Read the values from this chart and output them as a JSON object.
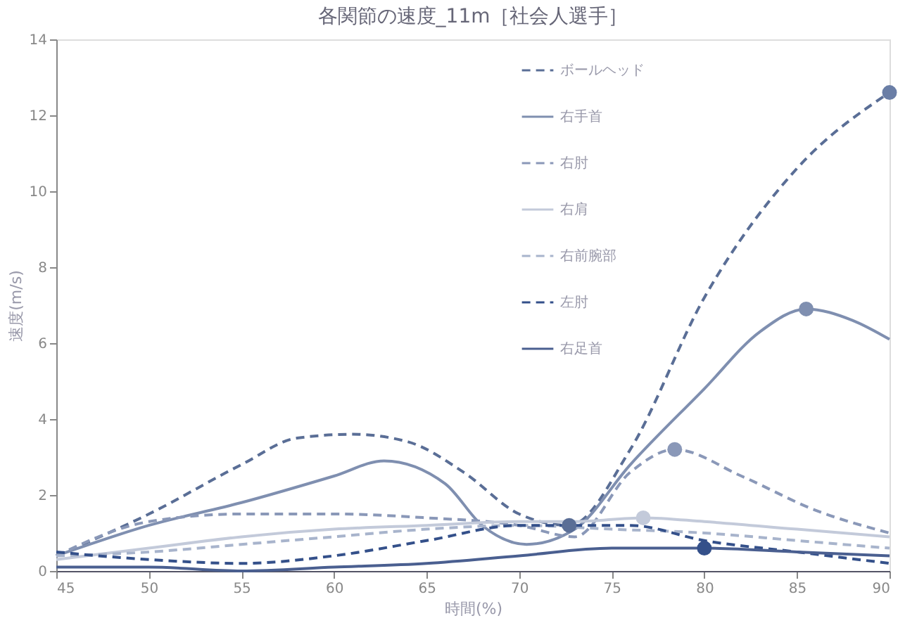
{
  "chart_data": {
    "type": "line",
    "title": "各関節の速度_11m［社会人選手］",
    "xlabel": "時間(%)",
    "ylabel": "速度(m/s)",
    "xlim": [
      45,
      90
    ],
    "xticks": [
      45,
      50,
      55,
      60,
      65,
      70,
      75,
      80,
      85,
      90
    ],
    "ylim": [
      0,
      14
    ],
    "yticks": [
      0,
      2,
      4,
      6,
      8,
      10,
      12,
      14
    ],
    "grid": false,
    "legend": "top",
    "marker": "none",
    "series": [
      {
        "name": "ボールヘッド",
        "color": "#5a6e96",
        "line_style": "dashed",
        "x": [
          45,
          50,
          55,
          58,
          61,
          64,
          67,
          70,
          72.7,
          76,
          80,
          85,
          90
        ],
        "values": [
          0.4,
          1.5,
          2.8,
          3.5,
          3.6,
          3.4,
          2.6,
          1.5,
          1.2,
          3.2,
          7.2,
          10.6,
          12.6
        ]
      },
      {
        "name": "右手首",
        "color": "#7f8fb0",
        "line_style": "solid",
        "x": [
          45,
          50,
          55,
          60,
          62.7,
          66,
          68,
          70.4,
          73,
          76,
          80,
          83,
          85.5,
          88,
          90
        ],
        "values": [
          0.4,
          1.2,
          1.8,
          2.5,
          2.9,
          2.3,
          1.2,
          0.7,
          1.1,
          2.8,
          4.8,
          6.3,
          6.9,
          6.6,
          6.1
        ]
      },
      {
        "name": "右肘",
        "color": "#8a98b8",
        "line_style": "dashed",
        "x": [
          45,
          50,
          55,
          60,
          65,
          70,
          73,
          76,
          78.4,
          82,
          86,
          90
        ],
        "values": [
          0.4,
          1.3,
          1.5,
          1.5,
          1.4,
          1.2,
          0.9,
          2.6,
          3.2,
          2.5,
          1.6,
          1.0
        ]
      },
      {
        "name": "右肩",
        "color": "#c3cada",
        "line_style": "solid",
        "x": [
          45,
          50,
          55,
          60,
          65,
          70,
          73,
          76.7,
          80,
          85,
          90
        ],
        "values": [
          0.3,
          0.6,
          0.9,
          1.1,
          1.2,
          1.3,
          1.3,
          1.4,
          1.3,
          1.1,
          0.9
        ]
      },
      {
        "name": "右前腕部",
        "color": "#a8b4cc",
        "line_style": "dashed",
        "x": [
          45,
          50,
          55,
          60,
          65,
          70,
          75,
          80,
          85,
          90
        ],
        "values": [
          0.4,
          0.5,
          0.7,
          0.9,
          1.1,
          1.2,
          1.1,
          1.0,
          0.8,
          0.6
        ]
      },
      {
        "name": "左肘",
        "color": "#34508a",
        "line_style": "dashed",
        "x": [
          45,
          50,
          55,
          60,
          65,
          70,
          73,
          76,
          80,
          85,
          90
        ],
        "values": [
          0.5,
          0.3,
          0.2,
          0.4,
          0.8,
          1.2,
          1.2,
          1.2,
          0.8,
          0.5,
          0.2
        ]
      },
      {
        "name": "右足首",
        "color": "#4a5f90",
        "line_style": "solid",
        "x": [
          45,
          50,
          55,
          60,
          65,
          70,
          75,
          80,
          85,
          90
        ],
        "values": [
          0.1,
          0.1,
          0.0,
          0.1,
          0.2,
          0.4,
          0.6,
          0.6,
          0.5,
          0.4
        ]
      },
      {
        "type": "scatter",
        "marker": "circle",
        "x": [
          90,
          85.5,
          78.4,
          76.7,
          72.7,
          80
        ],
        "values": [
          12.6,
          6.9,
          3.2,
          1.4,
          1.2,
          0.6
        ],
        "colors": [
          "#6a7ea6",
          "#7f8fb0",
          "#8a98b8",
          "#c3cada",
          "#5a6e96",
          "#34508a"
        ]
      }
    ]
  }
}
